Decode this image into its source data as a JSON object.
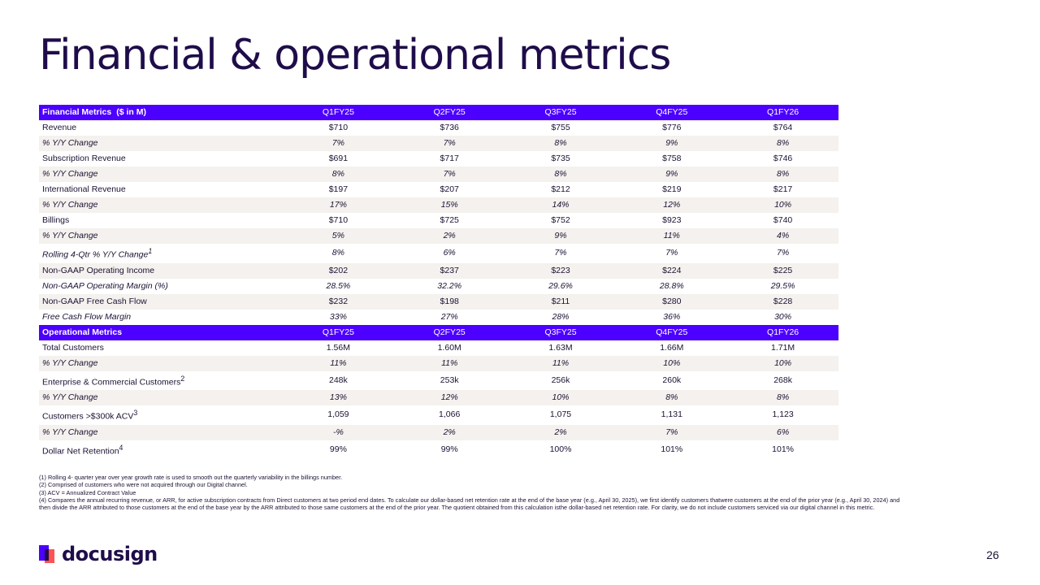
{
  "slide": {
    "title": "Financial & operational metrics",
    "page_number": "26",
    "brand": "docusign",
    "accent_color": "#4c00ff",
    "logo_colors": [
      "#4c00ff",
      "#ff5252"
    ]
  },
  "financial": {
    "header_label": "Financial Metrics",
    "header_unit": "($ in M)",
    "columns": [
      "Q1FY25",
      "Q2FY25",
      "Q3FY25",
      "Q4FY25",
      "Q1FY26"
    ],
    "rows": [
      {
        "label": "Revenue",
        "values": [
          "$710",
          "$736",
          "$755",
          "$776",
          "$764"
        ]
      },
      {
        "label": "% Y/Y Change",
        "values": [
          "7%",
          "7%",
          "8%",
          "9%",
          "8%"
        ]
      },
      {
        "label": "Subscription Revenue",
        "values": [
          "$691",
          "$717",
          "$735",
          "$758",
          "$746"
        ]
      },
      {
        "label": "% Y/Y Change",
        "values": [
          "8%",
          "7%",
          "8%",
          "9%",
          "8%"
        ]
      },
      {
        "label": "International Revenue",
        "values": [
          "$197",
          "$207",
          "$212",
          "$219",
          "$217"
        ]
      },
      {
        "label": "% Y/Y Change",
        "values": [
          "17%",
          "15%",
          "14%",
          "12%",
          "10%"
        ]
      },
      {
        "label": "Billings",
        "values": [
          "$710",
          "$725",
          "$752",
          "$923",
          "$740"
        ]
      },
      {
        "label": "% Y/Y Change",
        "values": [
          "5%",
          "2%",
          "9%",
          "11%",
          "4%"
        ]
      },
      {
        "label": "Rolling 4-Qtr % Y/Y Change",
        "sup": "1",
        "values": [
          "8%",
          "6%",
          "7%",
          "7%",
          "7%"
        ]
      },
      {
        "label": "Non-GAAP Operating Income",
        "values": [
          "$202",
          "$237",
          "$223",
          "$224",
          "$225"
        ]
      },
      {
        "label": "Non-GAAP Operating Margin (%)",
        "values": [
          "28.5%",
          "32.2%",
          "29.6%",
          "28.8%",
          "29.5%"
        ]
      },
      {
        "label": "Non-GAAP Free Cash Flow",
        "values": [
          "$232",
          "$198",
          "$211",
          "$280",
          "$228"
        ]
      },
      {
        "label": "Free Cash Flow Margin",
        "values": [
          "33%",
          "27%",
          "28%",
          "36%",
          "30%"
        ]
      }
    ]
  },
  "operational": {
    "header_label": "Operational Metrics",
    "columns": [
      "Q1FY25",
      "Q2FY25",
      "Q3FY25",
      "Q4FY25",
      "Q1FY26"
    ],
    "rows": [
      {
        "label": "Total Customers",
        "values": [
          "1.56M",
          "1.60M",
          "1.63M",
          "1.66M",
          "1.71M"
        ]
      },
      {
        "label": "% Y/Y Change",
        "values": [
          "11%",
          "11%",
          "11%",
          "10%",
          "10%"
        ]
      },
      {
        "label": "Enterprise & Commercial Customers",
        "sup": "2",
        "values": [
          "248k",
          "253k",
          "256k",
          "260k",
          "268k"
        ]
      },
      {
        "label": "% Y/Y Change",
        "values": [
          "13%",
          "12%",
          "10%",
          "8%",
          "8%"
        ]
      },
      {
        "label": "Customers >$300k ACV",
        "sup": "3",
        "values": [
          "1,059",
          "1,066",
          "1,075",
          "1,131",
          "1,123"
        ]
      },
      {
        "label": "% Y/Y Change",
        "values": [
          "-%",
          "2%",
          "2%",
          "7%",
          "6%"
        ]
      },
      {
        "label": "Dollar Net Retention",
        "sup": "4",
        "values": [
          "99%",
          "99%",
          "100%",
          "101%",
          "101%"
        ]
      }
    ]
  },
  "footnotes": [
    "(1) Rolling 4- quarter year over year growth rate is used to smooth out the quarterly variability in the billings number.",
    "(2) Comprised of customers who were not acquired through our Digital channel.",
    "(3) ACV = Annualized Contract Value",
    "(4) Compares the annual recurring revenue, or ARR, for active subscription contracts from Direct customers at two period end dates.  To calculate our dollar-based net retention rate at the end of the base year (e.g., April 30, 2025), we first identify customers thatwere customers at the end of the prior year (e.g., April 30, 2024) and then divide the ARR attributed to those customers at the end of the base year by the ARR attributed to those same customers at the end of the prior year. The quotient obtained from this calculation isthe dollar-based net retention rate. For clarity, we do not include customers serviced via our digital channel in this metric."
  ]
}
